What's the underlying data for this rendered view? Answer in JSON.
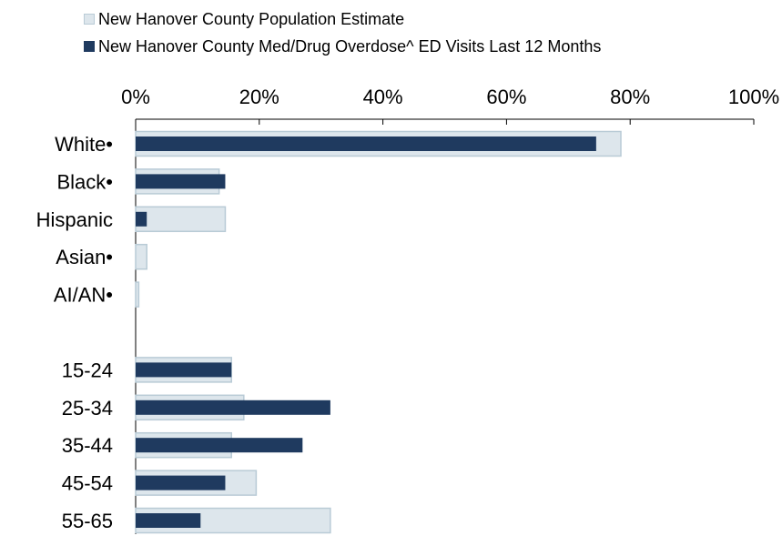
{
  "legend": {
    "population_label": "New Hanover County Population Estimate",
    "ed_label": "New Hanover County Med/Drug Overdose^ ED Visits Last 12 Months"
  },
  "colors": {
    "population_fill": "#dde6ec",
    "population_stroke": "#b9cbd6",
    "ed_fill": "#1f3a5f",
    "axis": "#000000"
  },
  "chart_data": {
    "type": "bar",
    "orientation": "horizontal",
    "x_axis_position": "top",
    "grid": false,
    "legend_position": "top",
    "xlim": [
      0,
      100
    ],
    "x_ticks": [
      "0%",
      "20%",
      "40%",
      "60%",
      "80%",
      "100%"
    ],
    "categories": [
      "White•",
      "Black•",
      "Hispanic",
      "Asian•",
      "AI/AN•",
      "",
      "15-24",
      "25-34",
      "35-44",
      "45-54",
      "55-65"
    ],
    "series": [
      {
        "name": "New Hanover County Population Estimate",
        "values": [
          78.5,
          13.5,
          14.5,
          1.8,
          0.5,
          null,
          15.5,
          17.5,
          15.5,
          19.5,
          31.5
        ]
      },
      {
        "name": "New Hanover County Med/Drug Overdose^ ED Visits Last 12 Months",
        "values": [
          74.5,
          14.5,
          1.8,
          0,
          0,
          null,
          15.5,
          31.5,
          27,
          14.5,
          10.5
        ]
      }
    ]
  }
}
